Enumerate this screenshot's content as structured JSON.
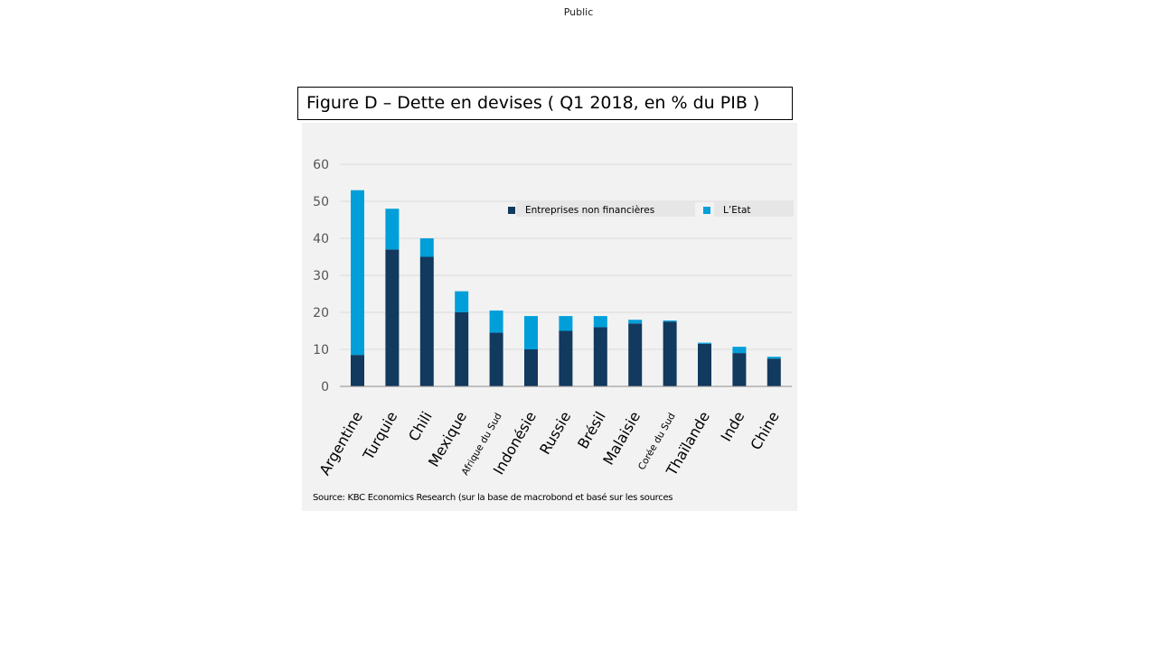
{
  "header": {
    "classification": "Public"
  },
  "colors": {
    "enterprises": "#12395e",
    "state": "#009fd9",
    "grid": "#d9d9d9",
    "panel": "#f2f2f2"
  },
  "chart_data": {
    "type": "bar",
    "stacked": true,
    "title": "Figure D – Dette en devises ( Q1 2018, en % du PIB )",
    "xlabel": "",
    "ylabel": "",
    "ylim": [
      0,
      60
    ],
    "yticks": [
      "0",
      "10",
      "20",
      "30",
      "40",
      "50",
      "60"
    ],
    "grid": true,
    "legend_position": "top-right",
    "categories": [
      "Argentine",
      "Turquie",
      "Chili",
      "Mexique",
      "Afrique du Sud",
      "Indonésie",
      "Russie",
      "Brésil",
      "Malaisie",
      "Corée du Sud",
      "Thaïlande",
      "Inde",
      "Chine"
    ],
    "series": [
      {
        "name": "Entreprises non financières",
        "values": [
          8.5,
          37,
          35,
          20,
          14.5,
          10,
          15,
          16,
          17,
          17.5,
          11.5,
          9,
          7.5
        ]
      },
      {
        "name": "L’Etat",
        "values": [
          44.5,
          11,
          5,
          5.7,
          6,
          9,
          4,
          3,
          1,
          0.3,
          0.3,
          1.7,
          0.5
        ]
      }
    ],
    "source": "Source: KBC Economics Research (sur la base de macrobond et basé sur les sources"
  }
}
